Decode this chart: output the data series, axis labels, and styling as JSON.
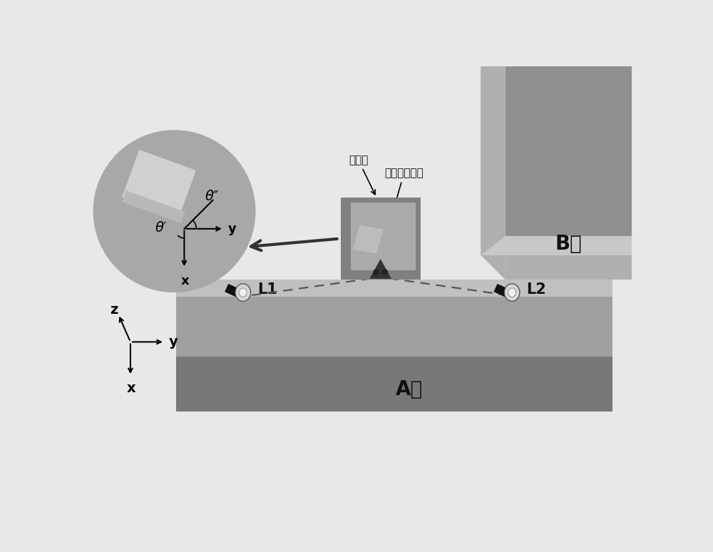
{
  "bg_color": "#e8e8e8",
  "fig_width": 10.0,
  "fig_height": 7.74,
  "text_color": "#111111",
  "label_A": "A楼",
  "label_B": "B楼",
  "label_L1": "L1",
  "label_L2": "L2",
  "label_panel": "介质板",
  "label_absorber": "雷达吸波材料",
  "label_theta_prime": "θ′",
  "label_theta_double_prime": "θ″",
  "label_x_main": "x",
  "label_y_main": "y",
  "label_z_main": "z",
  "label_x_circle": "x",
  "label_y_circle": "y",
  "col_bB_face": "#909090",
  "col_bB_side": "#b0b0b0",
  "col_bB_ledge_face": "#b0b0b0",
  "col_bB_ledge_top": "#c8c8c8",
  "col_plat_top": "#c0c0c0",
  "col_plat_face": "#a0a0a0",
  "col_plat_bottom": "#787878",
  "col_panel_bg": "#808080",
  "col_panel_inner": "#aaaaaa",
  "col_panel_refl": "#c0c0c0",
  "col_circle_bg": "#a8a8a8",
  "col_rect_top": "#d0d0d0",
  "col_rect_side": "#b8b8b8"
}
